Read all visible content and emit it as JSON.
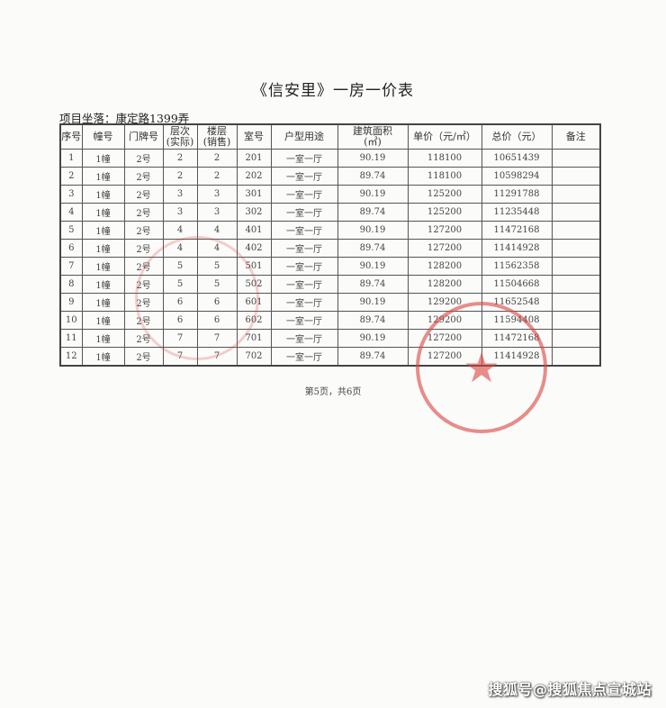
{
  "title": "《信安里》一房一价表",
  "location": "项目坐落：康定路1399弄",
  "columns": [
    "序号",
    "幢号",
    "门牌号",
    "层次\n(实际)",
    "楼层\n(销售)",
    "室号",
    "户型用途",
    "建筑面积\n(㎡)",
    "单价（元/㎡）",
    "总价（元）",
    "备注"
  ],
  "rows": [
    [
      "1",
      "1幢",
      "2号",
      "2",
      "2",
      "201",
      "一室一厅",
      "90.19",
      "118100",
      "10651439",
      ""
    ],
    [
      "2",
      "1幢",
      "2号",
      "2",
      "2",
      "202",
      "一室一厅",
      "89.74",
      "118100",
      "10598294",
      ""
    ],
    [
      "3",
      "1幢",
      "2号",
      "3",
      "3",
      "301",
      "一室一厅",
      "90.19",
      "125200",
      "11291788",
      ""
    ],
    [
      "4",
      "1幢",
      "2号",
      "3",
      "3",
      "302",
      "一室一厅",
      "89.74",
      "125200",
      "11235448",
      ""
    ],
    [
      "5",
      "1幢",
      "2号",
      "4",
      "4",
      "401",
      "一室一厅",
      "90.19",
      "127200",
      "11472168",
      ""
    ],
    [
      "6",
      "1幢",
      "2号",
      "4",
      "4",
      "402",
      "一室一厅",
      "89.74",
      "127200",
      "11414928",
      ""
    ],
    [
      "7",
      "1幢",
      "2号",
      "5",
      "5",
      "501",
      "一室一厅",
      "90.19",
      "128200",
      "11562358",
      ""
    ],
    [
      "8",
      "1幢",
      "2号",
      "5",
      "5",
      "502",
      "一室一厅",
      "89.74",
      "128200",
      "11504668",
      ""
    ],
    [
      "9",
      "1幢",
      "2号",
      "6",
      "6",
      "601",
      "一室一厅",
      "90.19",
      "129200",
      "11652548",
      ""
    ],
    [
      "10",
      "1幢",
      "2号",
      "6",
      "6",
      "602",
      "一室一厅",
      "89.74",
      "129200",
      "11594408",
      ""
    ],
    [
      "11",
      "1幢",
      "2号",
      "7",
      "7",
      "701",
      "一室一厅",
      "90.19",
      "127200",
      "11472168",
      ""
    ],
    [
      "12",
      "1幢",
      "2号",
      "7",
      "7",
      "702",
      "一室一厅",
      "89.74",
      "127200",
      "11414928",
      ""
    ]
  ],
  "footer": "第5页，共6页",
  "watermark": "搜狐号@搜狐焦点宣城站",
  "stamp_color": "#d9453f"
}
